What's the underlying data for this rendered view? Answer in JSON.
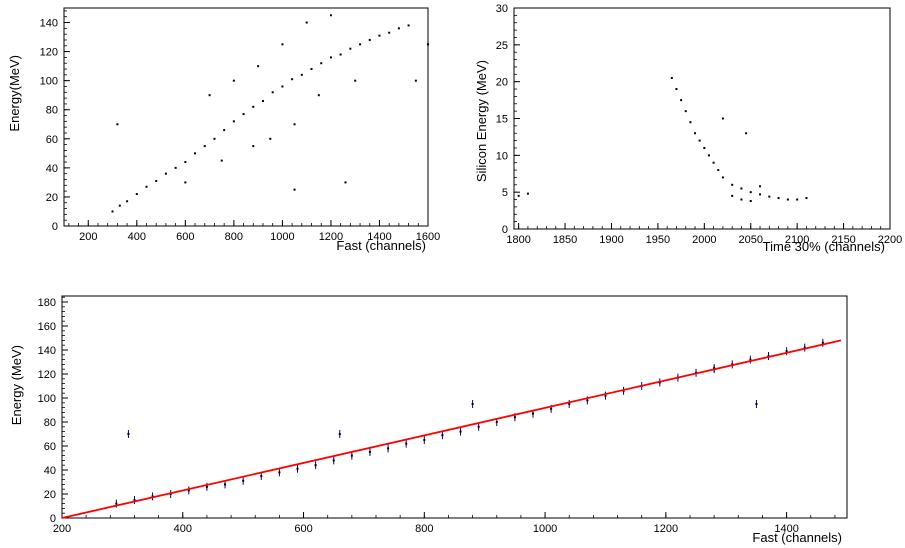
{
  "chart_data": [
    {
      "type": "scatter",
      "title": "",
      "xlabel": "Fast (channels)",
      "ylabel": "Energy(MeV)",
      "xlim": [
        100,
        1600
      ],
      "ylim": [
        0,
        150
      ],
      "xticks": [
        200,
        400,
        600,
        800,
        1000,
        1200,
        1400,
        1600
      ],
      "yticks": [
        0,
        20,
        40,
        60,
        80,
        100,
        120,
        140
      ],
      "xtick_labels": [
        "200",
        "400",
        "600",
        "800",
        "1000",
        "1200",
        "1400",
        "1600"
      ],
      "ytick_labels": [
        "0",
        "20",
        "40",
        "60",
        "80",
        "100",
        "120",
        "140"
      ],
      "marker_color": "#000000",
      "points": [
        [
          300,
          10
        ],
        [
          330,
          14
        ],
        [
          360,
          17
        ],
        [
          400,
          22
        ],
        [
          440,
          27
        ],
        [
          480,
          31
        ],
        [
          520,
          36
        ],
        [
          560,
          40
        ],
        [
          600,
          44
        ],
        [
          640,
          50
        ],
        [
          680,
          55
        ],
        [
          720,
          60
        ],
        [
          760,
          66
        ],
        [
          800,
          72
        ],
        [
          840,
          77
        ],
        [
          880,
          82
        ],
        [
          920,
          86
        ],
        [
          960,
          92
        ],
        [
          1000,
          96
        ],
        [
          1040,
          101
        ],
        [
          1080,
          104
        ],
        [
          1120,
          108
        ],
        [
          1160,
          112
        ],
        [
          1200,
          116
        ],
        [
          1240,
          118
        ],
        [
          1280,
          122
        ],
        [
          1320,
          125
        ],
        [
          1360,
          128
        ],
        [
          1400,
          131
        ],
        [
          1440,
          133
        ],
        [
          1480,
          136
        ],
        [
          1520,
          138
        ],
        [
          700,
          90
        ],
        [
          800,
          100
        ],
        [
          900,
          110
        ],
        [
          1000,
          125
        ],
        [
          1100,
          140
        ],
        [
          1200,
          145
        ],
        [
          950,
          60
        ],
        [
          1050,
          70
        ],
        [
          1150,
          90
        ],
        [
          1300,
          100
        ],
        [
          600,
          30
        ],
        [
          750,
          45
        ],
        [
          880,
          55
        ],
        [
          320,
          70
        ],
        [
          1050,
          25
        ],
        [
          1260,
          30
        ],
        [
          1600,
          125
        ],
        [
          1550,
          100
        ]
      ],
      "grid": false
    },
    {
      "type": "scatter",
      "title": "",
      "xlabel": "Time 30% (channels)",
      "ylabel": "Silicon Energy (MeV)",
      "xlim": [
        1795,
        2200
      ],
      "ylim": [
        0,
        30
      ],
      "xticks": [
        1800,
        1850,
        1900,
        1950,
        2000,
        2050,
        2100,
        2150,
        2200
      ],
      "yticks": [
        0,
        5,
        10,
        15,
        20,
        25,
        30
      ],
      "xtick_labels": [
        "1800",
        "1850",
        "1900",
        "1950",
        "2000",
        "2050",
        "2100",
        "2150",
        "2200"
      ],
      "ytick_labels": [
        "0",
        "5",
        "10",
        "15",
        "20",
        "25",
        "30"
      ],
      "marker_color": "#000000",
      "points": [
        [
          1965,
          20.5
        ],
        [
          1970,
          19
        ],
        [
          1975,
          17.5
        ],
        [
          1980,
          16
        ],
        [
          1985,
          14.5
        ],
        [
          1990,
          13
        ],
        [
          1995,
          12
        ],
        [
          2000,
          11
        ],
        [
          2005,
          10
        ],
        [
          2010,
          9
        ],
        [
          2015,
          8
        ],
        [
          2020,
          7
        ],
        [
          2030,
          6
        ],
        [
          2040,
          5.5
        ],
        [
          2050,
          5
        ],
        [
          2060,
          4.7
        ],
        [
          2070,
          4.4
        ],
        [
          2080,
          4.2
        ],
        [
          2090,
          4
        ],
        [
          2100,
          4
        ],
        [
          2110,
          4.2
        ],
        [
          2040,
          4
        ],
        [
          2050,
          3.8
        ],
        [
          2030,
          4.5
        ],
        [
          2060,
          5.8
        ],
        [
          1800,
          4.5
        ],
        [
          1810,
          4.8
        ],
        [
          2045,
          13
        ],
        [
          2020,
          15
        ]
      ],
      "grid": false
    },
    {
      "type": "scatter",
      "title": "",
      "xlabel": "Fast (channels)",
      "ylabel": "Energy (MeV)",
      "xlim": [
        200,
        1500
      ],
      "ylim": [
        0,
        185
      ],
      "xticks": [
        200,
        400,
        600,
        800,
        1000,
        1200,
        1400
      ],
      "yticks": [
        0,
        20,
        40,
        60,
        80,
        100,
        120,
        140,
        160,
        180
      ],
      "xtick_labels": [
        "200",
        "400",
        "600",
        "800",
        "1000",
        "1200",
        "1400"
      ],
      "ytick_labels": [
        "0",
        "20",
        "40",
        "60",
        "80",
        "100",
        "120",
        "140",
        "160",
        "180"
      ],
      "marker_color": "#000080",
      "fit_color": "#ff0000",
      "points": [
        [
          290,
          12
        ],
        [
          320,
          15
        ],
        [
          350,
          18
        ],
        [
          380,
          20
        ],
        [
          410,
          23
        ],
        [
          440,
          26
        ],
        [
          470,
          28
        ],
        [
          500,
          31
        ],
        [
          530,
          35
        ],
        [
          560,
          38
        ],
        [
          590,
          41
        ],
        [
          620,
          44
        ],
        [
          650,
          48
        ],
        [
          680,
          52
        ],
        [
          710,
          55
        ],
        [
          740,
          58
        ],
        [
          770,
          62
        ],
        [
          800,
          65
        ],
        [
          830,
          69
        ],
        [
          860,
          72
        ],
        [
          890,
          76
        ],
        [
          920,
          80
        ],
        [
          950,
          84
        ],
        [
          980,
          87
        ],
        [
          1010,
          91
        ],
        [
          1040,
          95
        ],
        [
          1070,
          98
        ],
        [
          1100,
          102
        ],
        [
          1130,
          106
        ],
        [
          1160,
          110
        ],
        [
          1190,
          113
        ],
        [
          1220,
          117
        ],
        [
          1250,
          121
        ],
        [
          1280,
          124
        ],
        [
          1310,
          128
        ],
        [
          1340,
          132
        ],
        [
          1370,
          135
        ],
        [
          1400,
          139
        ],
        [
          1430,
          142
        ],
        [
          1460,
          146
        ],
        [
          310,
          70
        ],
        [
          660,
          70
        ],
        [
          880,
          95
        ],
        [
          1280,
          125
        ],
        [
          1350,
          95
        ]
      ],
      "fit_line": [
        [
          200,
          0
        ],
        [
          1490,
          148
        ]
      ],
      "grid": false
    }
  ]
}
